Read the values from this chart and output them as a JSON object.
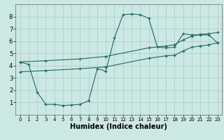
{
  "xlabel": "Humidex (Indice chaleur)",
  "ylabel": "",
  "background_color": "#cce8e4",
  "grid_color": "#aed0cc",
  "line_color": "#1a6b60",
  "marker": "+",
  "xlim": [
    -0.5,
    23.5
  ],
  "ylim": [
    0,
    9
  ],
  "xticks": [
    0,
    1,
    2,
    3,
    4,
    5,
    6,
    7,
    8,
    9,
    10,
    11,
    12,
    13,
    14,
    15,
    16,
    17,
    18,
    19,
    20,
    21,
    22,
    23
  ],
  "yticks": [
    1,
    2,
    3,
    4,
    5,
    6,
    7,
    8
  ],
  "line1_x": [
    0,
    1,
    2,
    3,
    4,
    5,
    6,
    7,
    8,
    9,
    10,
    11,
    12,
    13,
    14,
    15,
    16,
    17,
    18,
    19,
    20,
    21,
    22,
    23
  ],
  "line1_y": [
    4.3,
    4.1,
    1.85,
    0.85,
    0.85,
    0.75,
    0.8,
    0.85,
    1.15,
    3.75,
    3.55,
    6.25,
    8.15,
    8.2,
    8.15,
    7.85,
    5.5,
    5.45,
    5.5,
    6.6,
    6.5,
    6.5,
    6.5,
    5.85
  ],
  "line2_x": [
    0,
    3,
    7,
    10,
    15,
    17,
    18,
    19,
    20,
    21,
    22,
    23
  ],
  "line2_y": [
    3.5,
    3.6,
    3.75,
    3.9,
    4.6,
    4.8,
    4.85,
    5.2,
    5.5,
    5.6,
    5.7,
    5.85
  ],
  "line3_x": [
    0,
    3,
    7,
    10,
    15,
    17,
    18,
    19,
    20,
    21,
    22,
    23
  ],
  "line3_y": [
    4.3,
    4.4,
    4.55,
    4.75,
    5.45,
    5.6,
    5.7,
    6.1,
    6.4,
    6.55,
    6.6,
    6.7
  ]
}
